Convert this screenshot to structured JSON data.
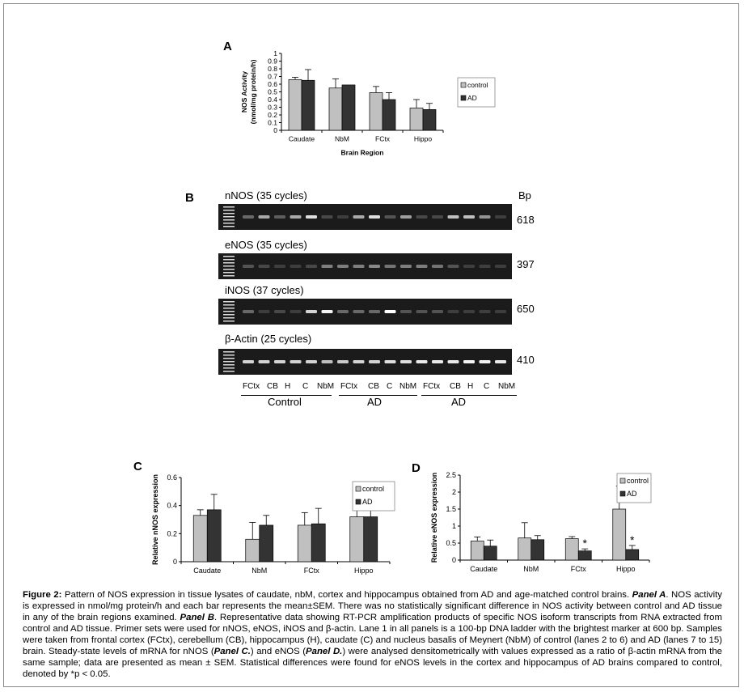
{
  "panel_letters": {
    "a": "A",
    "b": "B",
    "c": "C",
    "d": "D"
  },
  "chart_data": [
    {
      "panel": "A",
      "type": "bar",
      "categories": [
        "Caudate",
        "NbM",
        "FCtx",
        "Hippo"
      ],
      "xlabel": "Brain Region",
      "ylabel_line1": "NOS Activity",
      "ylabel_line2": "(nmol/mg protein/h)",
      "ylim": [
        0,
        1
      ],
      "yticks": [
        "0",
        "0.1",
        "0.2",
        "0.3",
        "0.4",
        "0.5",
        "0.6",
        "0.7",
        "0.8",
        "0.9",
        "1"
      ],
      "series": [
        {
          "name": "control",
          "color": "#c0c0c0",
          "values": [
            0.66,
            0.55,
            0.49,
            0.29
          ],
          "err": [
            0.03,
            0.12,
            0.08,
            0.11
          ]
        },
        {
          "name": "AD",
          "color": "#333333",
          "values": [
            0.65,
            0.59,
            0.4,
            0.27
          ],
          "err": [
            0.14,
            0.0,
            0.09,
            0.08
          ]
        }
      ],
      "legend": "right",
      "grid": false
    },
    {
      "panel": "C",
      "type": "bar",
      "categories": [
        "Caudate",
        "NbM",
        "FCtx",
        "Hippo"
      ],
      "ylabel": "Relative nNOS expression",
      "ylim": [
        0,
        0.6
      ],
      "yticks": [
        "0",
        "0.2",
        "0.4",
        "0.6"
      ],
      "series": [
        {
          "name": "control",
          "color": "#c0c0c0",
          "values": [
            0.33,
            0.16,
            0.26,
            0.32
          ],
          "err": [
            0.04,
            0.12,
            0.09,
            0.07
          ]
        },
        {
          "name": "AD",
          "color": "#333333",
          "values": [
            0.37,
            0.26,
            0.27,
            0.32
          ],
          "err": [
            0.11,
            0.07,
            0.11,
            0.18
          ]
        }
      ],
      "legend": "right",
      "grid": false
    },
    {
      "panel": "D",
      "type": "bar",
      "categories": [
        "Caudate",
        "NbM",
        "FCtx",
        "Hippo"
      ],
      "ylabel": "Relative eNOS expression",
      "ylim": [
        0,
        2.5
      ],
      "yticks": [
        "0",
        "0.5",
        "1",
        "1.5",
        "2",
        "2.5"
      ],
      "series": [
        {
          "name": "control",
          "color": "#c0c0c0",
          "values": [
            0.56,
            0.65,
            0.63,
            1.5
          ],
          "err": [
            0.12,
            0.45,
            0.06,
            0.68
          ]
        },
        {
          "name": "AD",
          "color": "#333333",
          "values": [
            0.41,
            0.6,
            0.27,
            0.31
          ],
          "err": [
            0.18,
            0.12,
            0.06,
            0.12
          ]
        }
      ],
      "significance": [
        "",
        "",
        "*",
        "*"
      ],
      "legend": "right",
      "grid": false
    }
  ],
  "gels": [
    {
      "title": "nNOS (35 cycles)",
      "bp": "618",
      "intensity": [
        0.3,
        0.6,
        0.25,
        0.6,
        0.85,
        0.15,
        0.1,
        0.6,
        0.85,
        0.2,
        0.55,
        0.15,
        0.15,
        0.7,
        0.7,
        0.5,
        0.1
      ]
    },
    {
      "title": "eNOS (35 cycles)",
      "bp": "397",
      "intensity": [
        0.2,
        0.15,
        0.1,
        0.1,
        0.15,
        0.4,
        0.4,
        0.4,
        0.45,
        0.35,
        0.4,
        0.4,
        0.35,
        0.2,
        0.1,
        0.1,
        0.1
      ]
    },
    {
      "title": "iNOS (37 cycles)",
      "bp": "650",
      "intensity": [
        0.3,
        0.1,
        0.15,
        0.1,
        0.8,
        0.95,
        0.3,
        0.3,
        0.3,
        1.0,
        0.2,
        0.2,
        0.2,
        0.1,
        0.1,
        0.1,
        0.1
      ]
    },
    {
      "title": "β-Actin (25 cycles)",
      "bp": "410",
      "intensity": [
        0.8,
        0.8,
        0.8,
        0.8,
        0.8,
        0.7,
        0.75,
        0.8,
        0.8,
        0.85,
        0.85,
        0.9,
        0.9,
        0.9,
        0.95,
        0.95,
        0.9
      ]
    }
  ],
  "gel_bp_header": "Bp",
  "lanes": {
    "labels": [
      "FCtx",
      "CB",
      "H",
      "C",
      "NbM",
      "FCtx",
      "CB",
      "C",
      "NbM",
      "FCtx",
      "CB",
      "H",
      "C",
      "NbM"
    ],
    "groups": [
      "Control",
      "AD",
      "AD"
    ]
  },
  "caption": {
    "figure_label": "Figure 2:",
    "text1": " Pattern of NOS expression in tissue lysates of caudate, nbM, cortex and hippocampus obtained from AD and age-matched control brains. ",
    "panelA": "Panel A",
    "text2": ". NOS activity is expressed in nmol/mg protein/h and each bar represents the mean±SEM. There was no statistically significant difference in NOS activity between control and AD tissue in any of the brain regions examined. ",
    "panelB": "Panel B",
    "text3": ". Representative data showing RT-PCR amplification products of specific NOS isoform transcripts from RNA extracted from control and AD tissue. Primer sets were used for nNOS, eNOS, iNOS and β-actin. Lane 1 in all panels is a 100-bp DNA ladder with the brightest marker at 600 bp. Samples were taken from frontal cortex (FCtx), cerebellum (CB), hippocampus (H), caudate (C) and nucleus basalis of Meynert (NbM) of control (lanes 2 to 6) and AD (lanes 7 to 15) brain. Steady-state levels of mRNA for nNOS (",
    "panelC": "Panel C.",
    "text4": ") and eNOS (",
    "panelD": "Panel D.",
    "text5": ") were analysed densitometrically with values expressed as a ratio of β-actin mRNA from the same sample; data are presented as mean ± SEM. Statistical differences were found for eNOS levels in the cortex and hippocampus of AD brains compared to control, denoted by *p < 0.05."
  }
}
